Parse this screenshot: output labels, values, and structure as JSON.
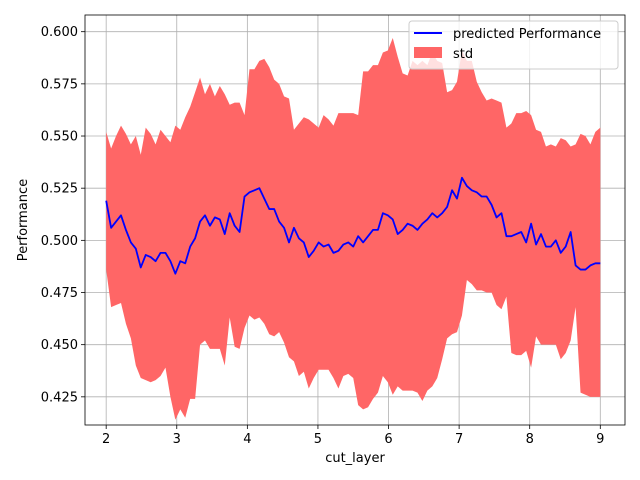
{
  "chart_data": {
    "type": "line",
    "xlabel": "cut_layer",
    "ylabel": "Performance",
    "xlim": [
      1.7,
      9.35
    ],
    "ylim": [
      0.4115,
      0.608
    ],
    "xticks": [
      2,
      3,
      4,
      5,
      6,
      7,
      8,
      9
    ],
    "xtick_labels": [
      "2",
      "3",
      "4",
      "5",
      "6",
      "7",
      "8",
      "9"
    ],
    "yticks": [
      0.425,
      0.45,
      0.475,
      0.5,
      0.525,
      0.55,
      0.575,
      0.6
    ],
    "ytick_labels": [
      "0.425",
      "0.450",
      "0.475",
      "0.500",
      "0.525",
      "0.550",
      "0.575",
      "0.600"
    ],
    "grid": true,
    "legend_position": "top-right",
    "colors": {
      "line": "#0000ff",
      "band": "#ff6666",
      "grid": "#b0b0b0"
    },
    "series": [
      {
        "name": "predicted Performance",
        "kind": "line",
        "x": [
          2.0,
          2.07,
          2.14,
          2.21,
          2.28,
          2.35,
          2.42,
          2.49,
          2.56,
          2.63,
          2.7,
          2.77,
          2.84,
          2.91,
          2.98,
          3.05,
          3.12,
          3.19,
          3.26,
          3.33,
          3.4,
          3.47,
          3.54,
          3.61,
          3.68,
          3.75,
          3.82,
          3.89,
          3.96,
          4.03,
          4.1,
          4.17,
          4.24,
          4.31,
          4.38,
          4.45,
          4.52,
          4.59,
          4.66,
          4.73,
          4.8,
          4.87,
          4.94,
          5.01,
          5.08,
          5.15,
          5.22,
          5.29,
          5.36,
          5.43,
          5.5,
          5.57,
          5.64,
          5.71,
          5.78,
          5.85,
          5.92,
          5.99,
          6.06,
          6.13,
          6.2,
          6.27,
          6.34,
          6.41,
          6.48,
          6.55,
          6.62,
          6.69,
          6.76,
          6.83,
          6.9,
          6.97,
          7.04,
          7.11,
          7.18,
          7.25,
          7.32,
          7.39,
          7.46,
          7.53,
          7.6,
          7.67,
          7.74,
          7.81,
          7.88,
          7.95,
          8.02,
          8.09,
          8.16,
          8.23,
          8.3,
          8.37,
          8.44,
          8.51,
          8.58,
          8.65,
          8.72,
          8.79,
          8.86,
          8.93,
          9.0
        ],
        "y": [
          0.519,
          0.506,
          0.509,
          0.512,
          0.505,
          0.499,
          0.496,
          0.487,
          0.493,
          0.492,
          0.49,
          0.494,
          0.494,
          0.49,
          0.484,
          0.49,
          0.489,
          0.497,
          0.501,
          0.509,
          0.512,
          0.507,
          0.511,
          0.51,
          0.503,
          0.513,
          0.507,
          0.504,
          0.521,
          0.523,
          0.524,
          0.525,
          0.52,
          0.515,
          0.515,
          0.509,
          0.506,
          0.499,
          0.506,
          0.501,
          0.499,
          0.492,
          0.495,
          0.499,
          0.497,
          0.498,
          0.494,
          0.495,
          0.498,
          0.499,
          0.497,
          0.502,
          0.499,
          0.502,
          0.505,
          0.505,
          0.513,
          0.512,
          0.51,
          0.503,
          0.505,
          0.508,
          0.507,
          0.505,
          0.508,
          0.51,
          0.513,
          0.511,
          0.513,
          0.516,
          0.524,
          0.52,
          0.53,
          0.526,
          0.524,
          0.523,
          0.521,
          0.521,
          0.517,
          0.511,
          0.513,
          0.502,
          0.502,
          0.503,
          0.504,
          0.499,
          0.508,
          0.498,
          0.503,
          0.497,
          0.497,
          0.5,
          0.494,
          0.497,
          0.504,
          0.488,
          0.486,
          0.486,
          0.488,
          0.489,
          0.489
        ]
      },
      {
        "name": "std",
        "kind": "band",
        "upper": [
          0.552,
          0.544,
          0.55,
          0.555,
          0.551,
          0.546,
          0.55,
          0.541,
          0.554,
          0.551,
          0.546,
          0.553,
          0.55,
          0.547,
          0.555,
          0.553,
          0.559,
          0.564,
          0.571,
          0.578,
          0.57,
          0.575,
          0.569,
          0.574,
          0.57,
          0.565,
          0.566,
          0.566,
          0.56,
          0.582,
          0.582,
          0.586,
          0.587,
          0.583,
          0.577,
          0.575,
          0.569,
          0.568,
          0.553,
          0.556,
          0.559,
          0.558,
          0.556,
          0.554,
          0.56,
          0.558,
          0.555,
          0.561,
          0.561,
          0.561,
          0.561,
          0.56,
          0.581,
          0.581,
          0.584,
          0.584,
          0.59,
          0.591,
          0.597,
          0.588,
          0.58,
          0.579,
          0.586,
          0.584,
          0.586,
          0.584,
          0.59,
          0.586,
          0.585,
          0.571,
          0.572,
          0.576,
          0.591,
          0.586,
          0.586,
          0.576,
          0.571,
          0.567,
          0.568,
          0.567,
          0.566,
          0.554,
          0.556,
          0.561,
          0.561,
          0.562,
          0.56,
          0.553,
          0.552,
          0.545,
          0.546,
          0.545,
          0.549,
          0.548,
          0.545,
          0.546,
          0.551,
          0.55,
          0.546,
          0.552,
          0.554
        ],
        "lower": [
          0.486,
          0.468,
          0.469,
          0.47,
          0.46,
          0.453,
          0.44,
          0.434,
          0.433,
          0.432,
          0.433,
          0.435,
          0.439,
          0.425,
          0.414,
          0.419,
          0.415,
          0.424,
          0.424,
          0.45,
          0.452,
          0.448,
          0.448,
          0.448,
          0.44,
          0.463,
          0.449,
          0.448,
          0.458,
          0.464,
          0.462,
          0.463,
          0.46,
          0.455,
          0.454,
          0.456,
          0.451,
          0.444,
          0.442,
          0.435,
          0.437,
          0.429,
          0.434,
          0.438,
          0.438,
          0.438,
          0.434,
          0.429,
          0.435,
          0.436,
          0.434,
          0.421,
          0.419,
          0.42,
          0.424,
          0.427,
          0.435,
          0.432,
          0.426,
          0.43,
          0.428,
          0.428,
          0.428,
          0.427,
          0.423,
          0.428,
          0.43,
          0.434,
          0.443,
          0.453,
          0.455,
          0.456,
          0.464,
          0.481,
          0.479,
          0.476,
          0.476,
          0.475,
          0.475,
          0.469,
          0.467,
          0.473,
          0.446,
          0.445,
          0.445,
          0.447,
          0.439,
          0.454,
          0.45,
          0.45,
          0.45,
          0.45,
          0.443,
          0.446,
          0.452,
          0.468,
          0.427,
          0.426,
          0.425,
          0.425,
          0.425
        ]
      }
    ]
  }
}
